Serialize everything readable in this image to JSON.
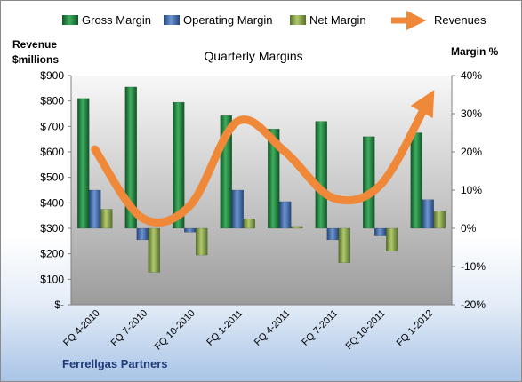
{
  "chart_data": {
    "type": "bar",
    "title": "Quarterly Margins",
    "footer": "Ferrellgas Partners",
    "ylabel_left": [
      "Revenue",
      "$millions"
    ],
    "ylabel_right": "Margin %",
    "categories": [
      "FQ 4-2010",
      "FQ 7-2010",
      "FQ 10-2010",
      "FQ 1-2011",
      "FQ 4-2011",
      "FQ 7-2011",
      "FQ 10-2011",
      "FQ 1-2012"
    ],
    "left_ylim": [
      0,
      900
    ],
    "left_ticks": [
      "$-",
      "$100",
      "$200",
      "$300",
      "$400",
      "$500",
      "$600",
      "$700",
      "$800",
      "$900"
    ],
    "right_ylim": [
      -20,
      40
    ],
    "right_ticks": [
      "-20%",
      "-10%",
      "0%",
      "10%",
      "20%",
      "30%",
      "40%"
    ],
    "legend_position": "top",
    "grid": false,
    "series": [
      {
        "name": "Gross Margin",
        "axis": "right",
        "kind": "bar",
        "color": "#1f7a3a",
        "values": [
          34,
          37,
          33,
          29.5,
          26,
          28,
          24,
          25
        ]
      },
      {
        "name": "Operating Margin",
        "axis": "right",
        "kind": "bar",
        "color": "#3b64a6",
        "values": [
          10,
          -3,
          -1,
          10,
          7,
          -3,
          -2,
          7.5
        ]
      },
      {
        "name": "Net Margin",
        "axis": "right",
        "kind": "bar",
        "color": "#7c9a3c",
        "values": [
          5,
          -11.5,
          -7,
          2.5,
          0.5,
          -9,
          -6,
          4.5
        ]
      },
      {
        "name": "Revenues",
        "axis": "left",
        "kind": "line",
        "color": "#f0883a",
        "values": [
          610,
          340,
          390,
          720,
          600,
          420,
          470,
          800
        ]
      }
    ]
  }
}
